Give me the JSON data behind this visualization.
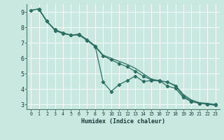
{
  "xlabel": "Humidex (Indice chaleur)",
  "bg_color": "#c8e8e0",
  "grid_color": "#b0d8d0",
  "line_color": "#2d6e63",
  "xlim": [
    -0.5,
    23.5
  ],
  "ylim": [
    2.7,
    9.5
  ],
  "yticks": [
    3,
    4,
    5,
    6,
    7,
    8,
    9
  ],
  "xticks": [
    0,
    1,
    2,
    3,
    4,
    5,
    6,
    7,
    8,
    9,
    10,
    11,
    12,
    13,
    14,
    15,
    16,
    17,
    18,
    19,
    20,
    21,
    22,
    23
  ],
  "series1_x": [
    0,
    1,
    2,
    3,
    4,
    5,
    6,
    7,
    8,
    9,
    10,
    11,
    12,
    13,
    14,
    15,
    16,
    17,
    18,
    19,
    20,
    21,
    22,
    23
  ],
  "series1_y": [
    9.1,
    9.2,
    8.35,
    7.85,
    7.6,
    7.5,
    7.55,
    7.2,
    6.8,
    6.2,
    6.0,
    5.8,
    5.6,
    5.35,
    5.0,
    4.65,
    4.55,
    4.45,
    4.25,
    3.65,
    3.3,
    3.12,
    3.08,
    3.0
  ],
  "series2_x": [
    0,
    1,
    2,
    3,
    4,
    5,
    6,
    7,
    8,
    9,
    10,
    11,
    12,
    13,
    14,
    15,
    16,
    17,
    18,
    19,
    20,
    21,
    22,
    23
  ],
  "series2_y": [
    9.1,
    9.2,
    8.4,
    7.85,
    7.65,
    7.5,
    7.55,
    7.2,
    6.8,
    4.45,
    3.85,
    4.3,
    4.55,
    4.85,
    4.5,
    4.55,
    4.55,
    4.2,
    4.05,
    3.45,
    3.2,
    3.08,
    3.02,
    3.0
  ],
  "series3_x": [
    1,
    2,
    3,
    4,
    5,
    6,
    7,
    8,
    9,
    10,
    11,
    12,
    13,
    14,
    15,
    16,
    17,
    18,
    19,
    20,
    21,
    22,
    23
  ],
  "series3_y": [
    9.15,
    8.4,
    7.8,
    7.6,
    7.5,
    7.5,
    7.15,
    6.75,
    6.15,
    5.9,
    5.65,
    5.45,
    5.15,
    4.85,
    4.6,
    4.52,
    4.47,
    4.2,
    3.55,
    3.22,
    3.08,
    3.02,
    2.95
  ]
}
